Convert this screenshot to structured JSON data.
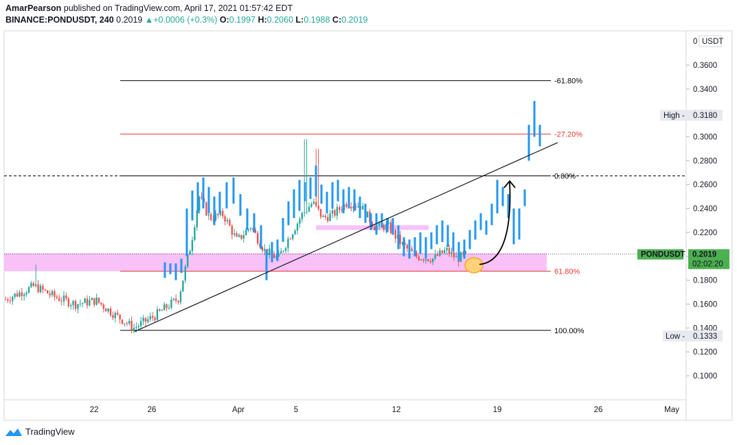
{
  "header": {
    "author": "AmarPearson",
    "published": "published on TradingView.com, April 17, 2021 01:57:42 EDT",
    "symbol": "BINANCE:PONDUSDT, 240",
    "last": "0.2019",
    "arrow": "▲",
    "change": "+0.0006 (+0.3%)",
    "o_label": "O:",
    "o_val": "0.1997",
    "h_label": "H:",
    "h_val": "0.2060",
    "l_label": "L:",
    "l_val": "0.1988",
    "c_label": "C:",
    "c_val": "0.2019"
  },
  "footer": {
    "brand": "TradingView"
  },
  "colors": {
    "up": "#26a69a",
    "down": "#ef5350",
    "projection": "#2196f3",
    "zone": "#f7b6f7",
    "price_label": "#4caf50"
  },
  "chart_data": {
    "type": "candlestick",
    "currency": "USDT",
    "ylim": [
      0.08,
      0.38
    ],
    "y_ticks": [
      "0.3600",
      "0.3400",
      "0.3200",
      "0.3000",
      "0.2800",
      "0.2600",
      "0.2400",
      "0.2200",
      "0.2000",
      "0.1800",
      "0.1600",
      "0.1400",
      "0.1200",
      "0.1000"
    ],
    "x_ticks": [
      "22",
      "26",
      "Apr",
      "5",
      "12",
      "19",
      "26",
      "May"
    ],
    "fib_levels": [
      {
        "label": "-61.80%",
        "price": 0.347,
        "color": "#000000"
      },
      {
        "label": "-27.20%",
        "price": 0.3023,
        "color": "#e53935"
      },
      {
        "label": "0.00%",
        "price": 0.2673,
        "color": "#000000"
      },
      {
        "label": "61.80%",
        "price": 0.1875,
        "color": "#e53935"
      },
      {
        "label": "100.00%",
        "price": 0.138,
        "color": "#000000"
      }
    ],
    "support_zone": [
      0.1875,
      0.2025
    ],
    "projection_zone": [
      0.222,
      0.226
    ],
    "markers": {
      "high": {
        "label": "High",
        "value": "0.3180",
        "price": 0.318
      },
      "low": {
        "label": "Low",
        "value": "0.1333",
        "price": 0.1333
      },
      "last": {
        "label": "PONDUSDT",
        "value": "0.2019",
        "countdown": "02:02:20",
        "price": 0.2019
      }
    }
  }
}
